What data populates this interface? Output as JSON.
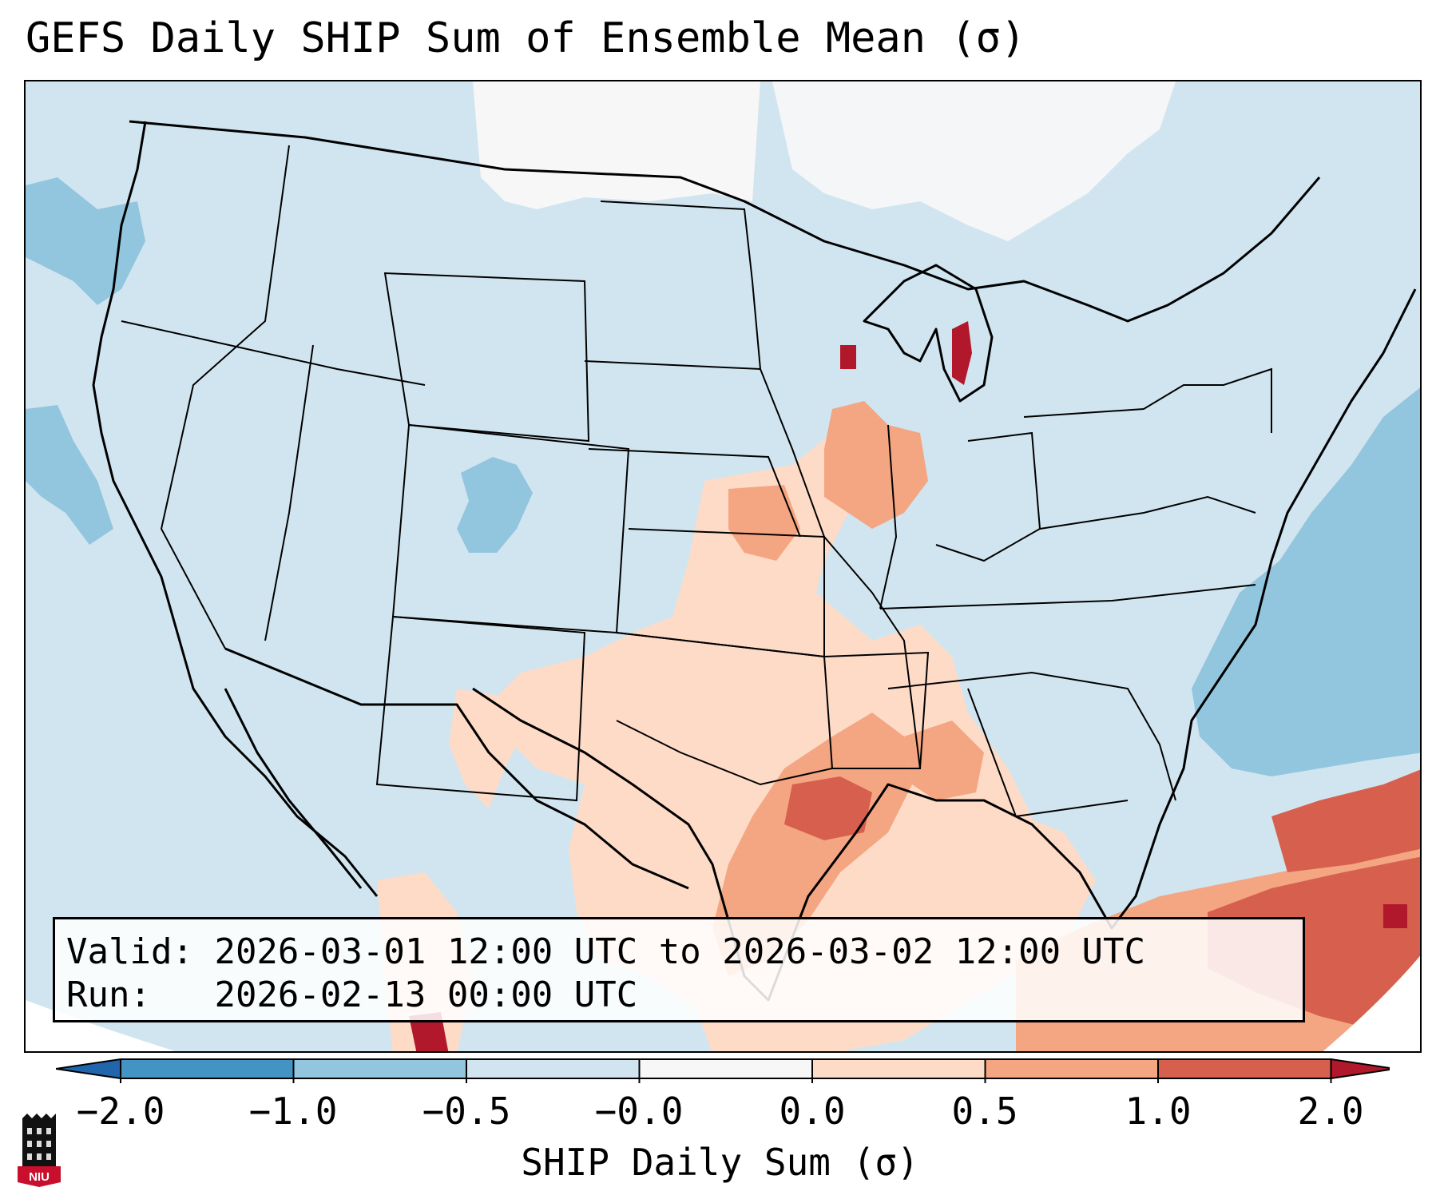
{
  "title": "GEFS Daily SHIP Sum of Ensemble Mean (σ)",
  "info": {
    "valid_label": "Valid:",
    "valid_value": "2026-03-01 12:00 UTC to 2026-03-02 12:00 UTC",
    "run_label": "Run:",
    "run_value": "2026-02-13 00:00 UTC"
  },
  "colorbar": {
    "label": "SHIP Daily Sum (σ)",
    "ticks": [
      "−2.0",
      "−1.0",
      "−0.5",
      "−0.0",
      "0.0",
      "0.5",
      "1.0",
      "2.0"
    ],
    "colors": [
      "#4393c3",
      "#92c5de",
      "#d1e5f0",
      "#f7f7f7",
      "#fddbc7",
      "#f4a582",
      "#d6604d"
    ],
    "extend_low_color": "#2166ac",
    "extend_high_color": "#b2182b"
  },
  "logo": {
    "text": "NIU"
  },
  "map": {
    "background_category": "-0.5 to -0.0",
    "regions": [
      {
        "name": "canadian-prairies-neutral",
        "category": "-0.0 to 0.0"
      },
      {
        "name": "ontario-quebec-neutral",
        "category": "-0.0 to 0.0"
      },
      {
        "name": "pacific-northwest-offshore-negative",
        "category": "-1.0 to -0.5"
      },
      {
        "name": "colorado-negative",
        "category": "-1.0 to -0.5"
      },
      {
        "name": "western-atlantic-negative",
        "category": "-1.0 to -0.5"
      },
      {
        "name": "central-plains-positive",
        "category": "0.0 to 0.5"
      },
      {
        "name": "mississippi-valley-positive",
        "category": "0.0 to 0.5"
      },
      {
        "name": "gulf-of-mexico-positive",
        "category": "0.0 to 0.5"
      },
      {
        "name": "iowa-illinois-moderate",
        "category": "0.5 to 1.0"
      },
      {
        "name": "louisiana-texas-coast-moderate",
        "category": "0.5 to 1.0"
      },
      {
        "name": "texas-coast-strong",
        "category": "1.0 to 2.0"
      },
      {
        "name": "caribbean-strong",
        "category": "1.0 to 2.0"
      },
      {
        "name": "lake-michigan-extreme",
        "category": ">2.0"
      }
    ]
  }
}
